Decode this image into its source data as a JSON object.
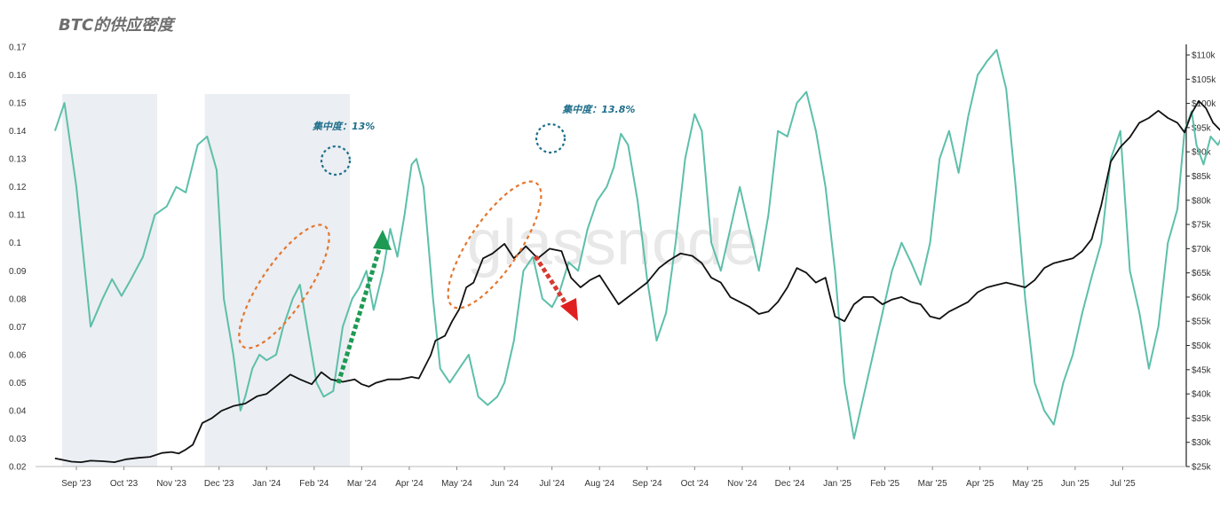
{
  "chart_data": {
    "type": "line",
    "title": "BTC的供应密度",
    "watermark": "glassnode",
    "xlabel": "",
    "ylabel_left": "",
    "ylabel_right": "",
    "x_ticks": [
      "Sep '23",
      "Oct '23",
      "Nov '23",
      "Dec '23",
      "Jan '24",
      "Feb '24",
      "Mar '24",
      "Apr '24",
      "May '24",
      "Jun '24",
      "Jul '24",
      "Aug '24",
      "Sep '24",
      "Oct '24",
      "Nov '24",
      "Dec '24",
      "Jan '25",
      "Feb '25",
      "Mar '25",
      "Apr '25",
      "May '25",
      "Jun '25",
      "Jul '25"
    ],
    "y_left": {
      "min": 0.02,
      "max": 0.17,
      "ticks": [
        "0.02",
        "0.03",
        "0.04",
        "0.05",
        "0.06",
        "0.07",
        "0.08",
        "0.09",
        "0.1",
        "0.11",
        "0.12",
        "0.13",
        "0.14",
        "0.15",
        "0.16",
        "0.17"
      ]
    },
    "y_right": {
      "min": 25000,
      "max": 110000,
      "ticks": [
        "$25k",
        "$30k",
        "$35k",
        "$40k",
        "$45k",
        "$50k",
        "$55k",
        "$60k",
        "$65k",
        "$70k",
        "$75k",
        "$80k",
        "$85k",
        "$90k",
        "$95k",
        "$100k",
        "$105k",
        "$110k"
      ]
    },
    "x_range": [
      0,
      23.35
    ],
    "shaded_regions": [
      [
        -0.3,
        1.7
      ],
      [
        2.7,
        5.75
      ]
    ],
    "series": [
      {
        "name": "",
        "axis": "left",
        "color": "#5dbfaa",
        "points": [
          [
            -0.45,
            0.14
          ],
          [
            -0.25,
            0.15
          ],
          [
            0.0,
            0.12
          ],
          [
            0.3,
            0.07
          ],
          [
            0.55,
            0.08
          ],
          [
            0.75,
            0.087
          ],
          [
            0.95,
            0.081
          ],
          [
            1.15,
            0.087
          ],
          [
            1.4,
            0.095
          ],
          [
            1.65,
            0.11
          ],
          [
            1.9,
            0.113
          ],
          [
            2.1,
            0.12
          ],
          [
            2.3,
            0.118
          ],
          [
            2.55,
            0.135
          ],
          [
            2.75,
            0.138
          ],
          [
            2.95,
            0.126
          ],
          [
            3.1,
            0.08
          ],
          [
            3.3,
            0.06
          ],
          [
            3.45,
            0.04
          ],
          [
            3.55,
            0.045
          ],
          [
            3.7,
            0.055
          ],
          [
            3.85,
            0.06
          ],
          [
            4.0,
            0.058
          ],
          [
            4.2,
            0.06
          ],
          [
            4.35,
            0.07
          ],
          [
            4.55,
            0.08
          ],
          [
            4.7,
            0.085
          ],
          [
            4.85,
            0.07
          ],
          [
            5.05,
            0.05
          ],
          [
            5.2,
            0.045
          ],
          [
            5.4,
            0.047
          ],
          [
            5.6,
            0.07
          ],
          [
            5.8,
            0.08
          ],
          [
            5.95,
            0.084
          ],
          [
            6.1,
            0.09
          ],
          [
            6.25,
            0.076
          ],
          [
            6.45,
            0.09
          ],
          [
            6.6,
            0.105
          ],
          [
            6.75,
            0.095
          ],
          [
            6.9,
            0.11
          ],
          [
            7.05,
            0.128
          ],
          [
            7.15,
            0.13
          ],
          [
            7.3,
            0.12
          ],
          [
            7.5,
            0.08
          ],
          [
            7.65,
            0.055
          ],
          [
            7.85,
            0.05
          ],
          [
            8.05,
            0.055
          ],
          [
            8.25,
            0.06
          ],
          [
            8.45,
            0.045
          ],
          [
            8.65,
            0.042
          ],
          [
            8.85,
            0.045
          ],
          [
            9.0,
            0.05
          ],
          [
            9.2,
            0.065
          ],
          [
            9.4,
            0.09
          ],
          [
            9.6,
            0.095
          ],
          [
            9.8,
            0.08
          ],
          [
            10.0,
            0.077
          ],
          [
            10.15,
            0.082
          ],
          [
            10.35,
            0.093
          ],
          [
            10.55,
            0.09
          ],
          [
            10.75,
            0.105
          ],
          [
            10.95,
            0.115
          ],
          [
            11.15,
            0.12
          ],
          [
            11.3,
            0.127
          ],
          [
            11.45,
            0.139
          ],
          [
            11.6,
            0.135
          ],
          [
            11.8,
            0.115
          ],
          [
            12.0,
            0.087
          ],
          [
            12.2,
            0.065
          ],
          [
            12.4,
            0.075
          ],
          [
            12.6,
            0.1
          ],
          [
            12.8,
            0.13
          ],
          [
            13.0,
            0.146
          ],
          [
            13.15,
            0.14
          ],
          [
            13.35,
            0.1
          ],
          [
            13.55,
            0.09
          ],
          [
            13.75,
            0.105
          ],
          [
            13.95,
            0.12
          ],
          [
            14.15,
            0.105
          ],
          [
            14.35,
            0.09
          ],
          [
            14.55,
            0.11
          ],
          [
            14.75,
            0.14
          ],
          [
            14.95,
            0.138
          ],
          [
            15.15,
            0.15
          ],
          [
            15.35,
            0.154
          ],
          [
            15.55,
            0.14
          ],
          [
            15.75,
            0.12
          ],
          [
            15.95,
            0.09
          ],
          [
            16.15,
            0.05
          ],
          [
            16.35,
            0.03
          ],
          [
            16.55,
            0.045
          ],
          [
            16.75,
            0.06
          ],
          [
            16.95,
            0.075
          ],
          [
            17.15,
            0.09
          ],
          [
            17.35,
            0.1
          ],
          [
            17.55,
            0.093
          ],
          [
            17.75,
            0.085
          ],
          [
            17.95,
            0.1
          ],
          [
            18.15,
            0.13
          ],
          [
            18.35,
            0.14
          ],
          [
            18.55,
            0.125
          ],
          [
            18.75,
            0.145
          ],
          [
            18.95,
            0.16
          ],
          [
            19.15,
            0.165
          ],
          [
            19.35,
            0.169
          ],
          [
            19.55,
            0.155
          ],
          [
            19.75,
            0.12
          ],
          [
            19.95,
            0.08
          ],
          [
            20.15,
            0.05
          ],
          [
            20.35,
            0.04
          ],
          [
            20.55,
            0.035
          ],
          [
            20.75,
            0.05
          ],
          [
            20.95,
            0.06
          ],
          [
            21.15,
            0.075
          ],
          [
            21.35,
            0.088
          ],
          [
            21.55,
            0.1
          ],
          [
            21.75,
            0.13
          ],
          [
            21.95,
            0.14
          ],
          [
            22.15,
            0.09
          ],
          [
            22.35,
            0.075
          ],
          [
            22.55,
            0.055
          ],
          [
            22.75,
            0.07
          ],
          [
            22.95,
            0.1
          ],
          [
            23.15,
            0.112
          ],
          [
            23.3,
            0.14
          ],
          [
            23.45,
            0.147
          ],
          [
            23.55,
            0.135
          ],
          [
            23.7,
            0.128
          ],
          [
            23.85,
            0.138
          ],
          [
            24.0,
            0.135
          ],
          [
            24.15,
            0.14
          ],
          [
            24.3,
            0.128
          ]
        ]
      },
      {
        "name": "",
        "axis": "right",
        "color": "#111111",
        "points": [
          [
            -0.45,
            26700
          ],
          [
            -0.25,
            26300
          ],
          [
            -0.1,
            26000
          ],
          [
            0.1,
            25900
          ],
          [
            0.3,
            26200
          ],
          [
            0.55,
            26100
          ],
          [
            0.8,
            25900
          ],
          [
            1.05,
            26500
          ],
          [
            1.3,
            26800
          ],
          [
            1.55,
            27000
          ],
          [
            1.8,
            27800
          ],
          [
            2.0,
            28000
          ],
          [
            2.15,
            27700
          ],
          [
            2.3,
            28500
          ],
          [
            2.45,
            29500
          ],
          [
            2.65,
            34000
          ],
          [
            2.85,
            35000
          ],
          [
            3.05,
            36500
          ],
          [
            3.3,
            37500
          ],
          [
            3.55,
            38000
          ],
          [
            3.8,
            39500
          ],
          [
            4.0,
            40000
          ],
          [
            4.25,
            42000
          ],
          [
            4.5,
            44000
          ],
          [
            4.7,
            43000
          ],
          [
            4.95,
            42000
          ],
          [
            5.15,
            44500
          ],
          [
            5.35,
            43000
          ],
          [
            5.6,
            42500
          ],
          [
            5.85,
            43000
          ],
          [
            6.0,
            42000
          ],
          [
            6.15,
            41500
          ],
          [
            6.3,
            42300
          ],
          [
            6.55,
            43000
          ],
          [
            6.8,
            43000
          ],
          [
            7.05,
            43500
          ],
          [
            7.2,
            43200
          ],
          [
            7.45,
            48000
          ],
          [
            7.55,
            51000
          ],
          [
            7.75,
            52000
          ],
          [
            7.9,
            55000
          ],
          [
            8.05,
            57500
          ],
          [
            8.2,
            62000
          ],
          [
            8.35,
            63000
          ],
          [
            8.55,
            68000
          ],
          [
            8.75,
            69000
          ],
          [
            9.0,
            71000
          ],
          [
            9.2,
            68000
          ],
          [
            9.45,
            70500
          ],
          [
            9.7,
            68000
          ],
          [
            9.95,
            70000
          ],
          [
            10.2,
            69500
          ],
          [
            10.4,
            64000
          ],
          [
            10.6,
            62000
          ],
          [
            10.8,
            63500
          ],
          [
            11.0,
            64500
          ],
          [
            11.2,
            61500
          ],
          [
            11.4,
            58500
          ],
          [
            11.6,
            60000
          ],
          [
            11.8,
            61500
          ],
          [
            12.0,
            63000
          ],
          [
            12.25,
            66000
          ],
          [
            12.45,
            67500
          ],
          [
            12.7,
            69000
          ],
          [
            12.95,
            68500
          ],
          [
            13.15,
            67000
          ],
          [
            13.35,
            64000
          ],
          [
            13.55,
            63000
          ],
          [
            13.75,
            60000
          ],
          [
            13.95,
            59000
          ],
          [
            14.15,
            58000
          ],
          [
            14.35,
            56500
          ],
          [
            14.55,
            57000
          ],
          [
            14.75,
            59000
          ],
          [
            14.95,
            62000
          ],
          [
            15.15,
            66000
          ],
          [
            15.35,
            65000
          ],
          [
            15.55,
            63000
          ],
          [
            15.75,
            64000
          ],
          [
            15.95,
            56000
          ],
          [
            16.15,
            55000
          ],
          [
            16.35,
            58500
          ],
          [
            16.55,
            60000
          ],
          [
            16.75,
            60000
          ],
          [
            16.95,
            58500
          ],
          [
            17.15,
            59500
          ],
          [
            17.35,
            60000
          ],
          [
            17.55,
            59000
          ],
          [
            17.75,
            58500
          ],
          [
            17.95,
            56000
          ],
          [
            18.15,
            55500
          ],
          [
            18.35,
            57000
          ],
          [
            18.55,
            58000
          ],
          [
            18.75,
            59000
          ],
          [
            18.95,
            61000
          ],
          [
            19.15,
            62000
          ],
          [
            19.35,
            62500
          ],
          [
            19.55,
            63000
          ],
          [
            19.75,
            62500
          ],
          [
            19.95,
            62000
          ],
          [
            20.15,
            63500
          ],
          [
            20.35,
            66000
          ],
          [
            20.55,
            67000
          ],
          [
            20.75,
            67500
          ],
          [
            20.95,
            68000
          ],
          [
            21.15,
            69500
          ],
          [
            21.35,
            72000
          ],
          [
            21.55,
            79000
          ],
          [
            21.75,
            88000
          ],
          [
            21.95,
            91000
          ],
          [
            22.15,
            93000
          ],
          [
            22.35,
            96000
          ],
          [
            22.55,
            97000
          ],
          [
            22.75,
            98500
          ],
          [
            22.95,
            97000
          ],
          [
            23.15,
            96000
          ],
          [
            23.3,
            94000
          ],
          [
            23.45,
            98000
          ],
          [
            23.6,
            100500
          ],
          [
            23.75,
            99000
          ],
          [
            23.9,
            96000
          ],
          [
            24.05,
            94500
          ],
          [
            24.2,
            96000
          ],
          [
            24.3,
            95000
          ]
        ]
      }
    ],
    "annotations": [
      {
        "text": "集中度：13%",
        "x": 5.75,
        "y": 0.1405
      },
      {
        "text": "集中度：13.8%",
        "x": 11.0,
        "y": 0.1465
      }
    ]
  }
}
